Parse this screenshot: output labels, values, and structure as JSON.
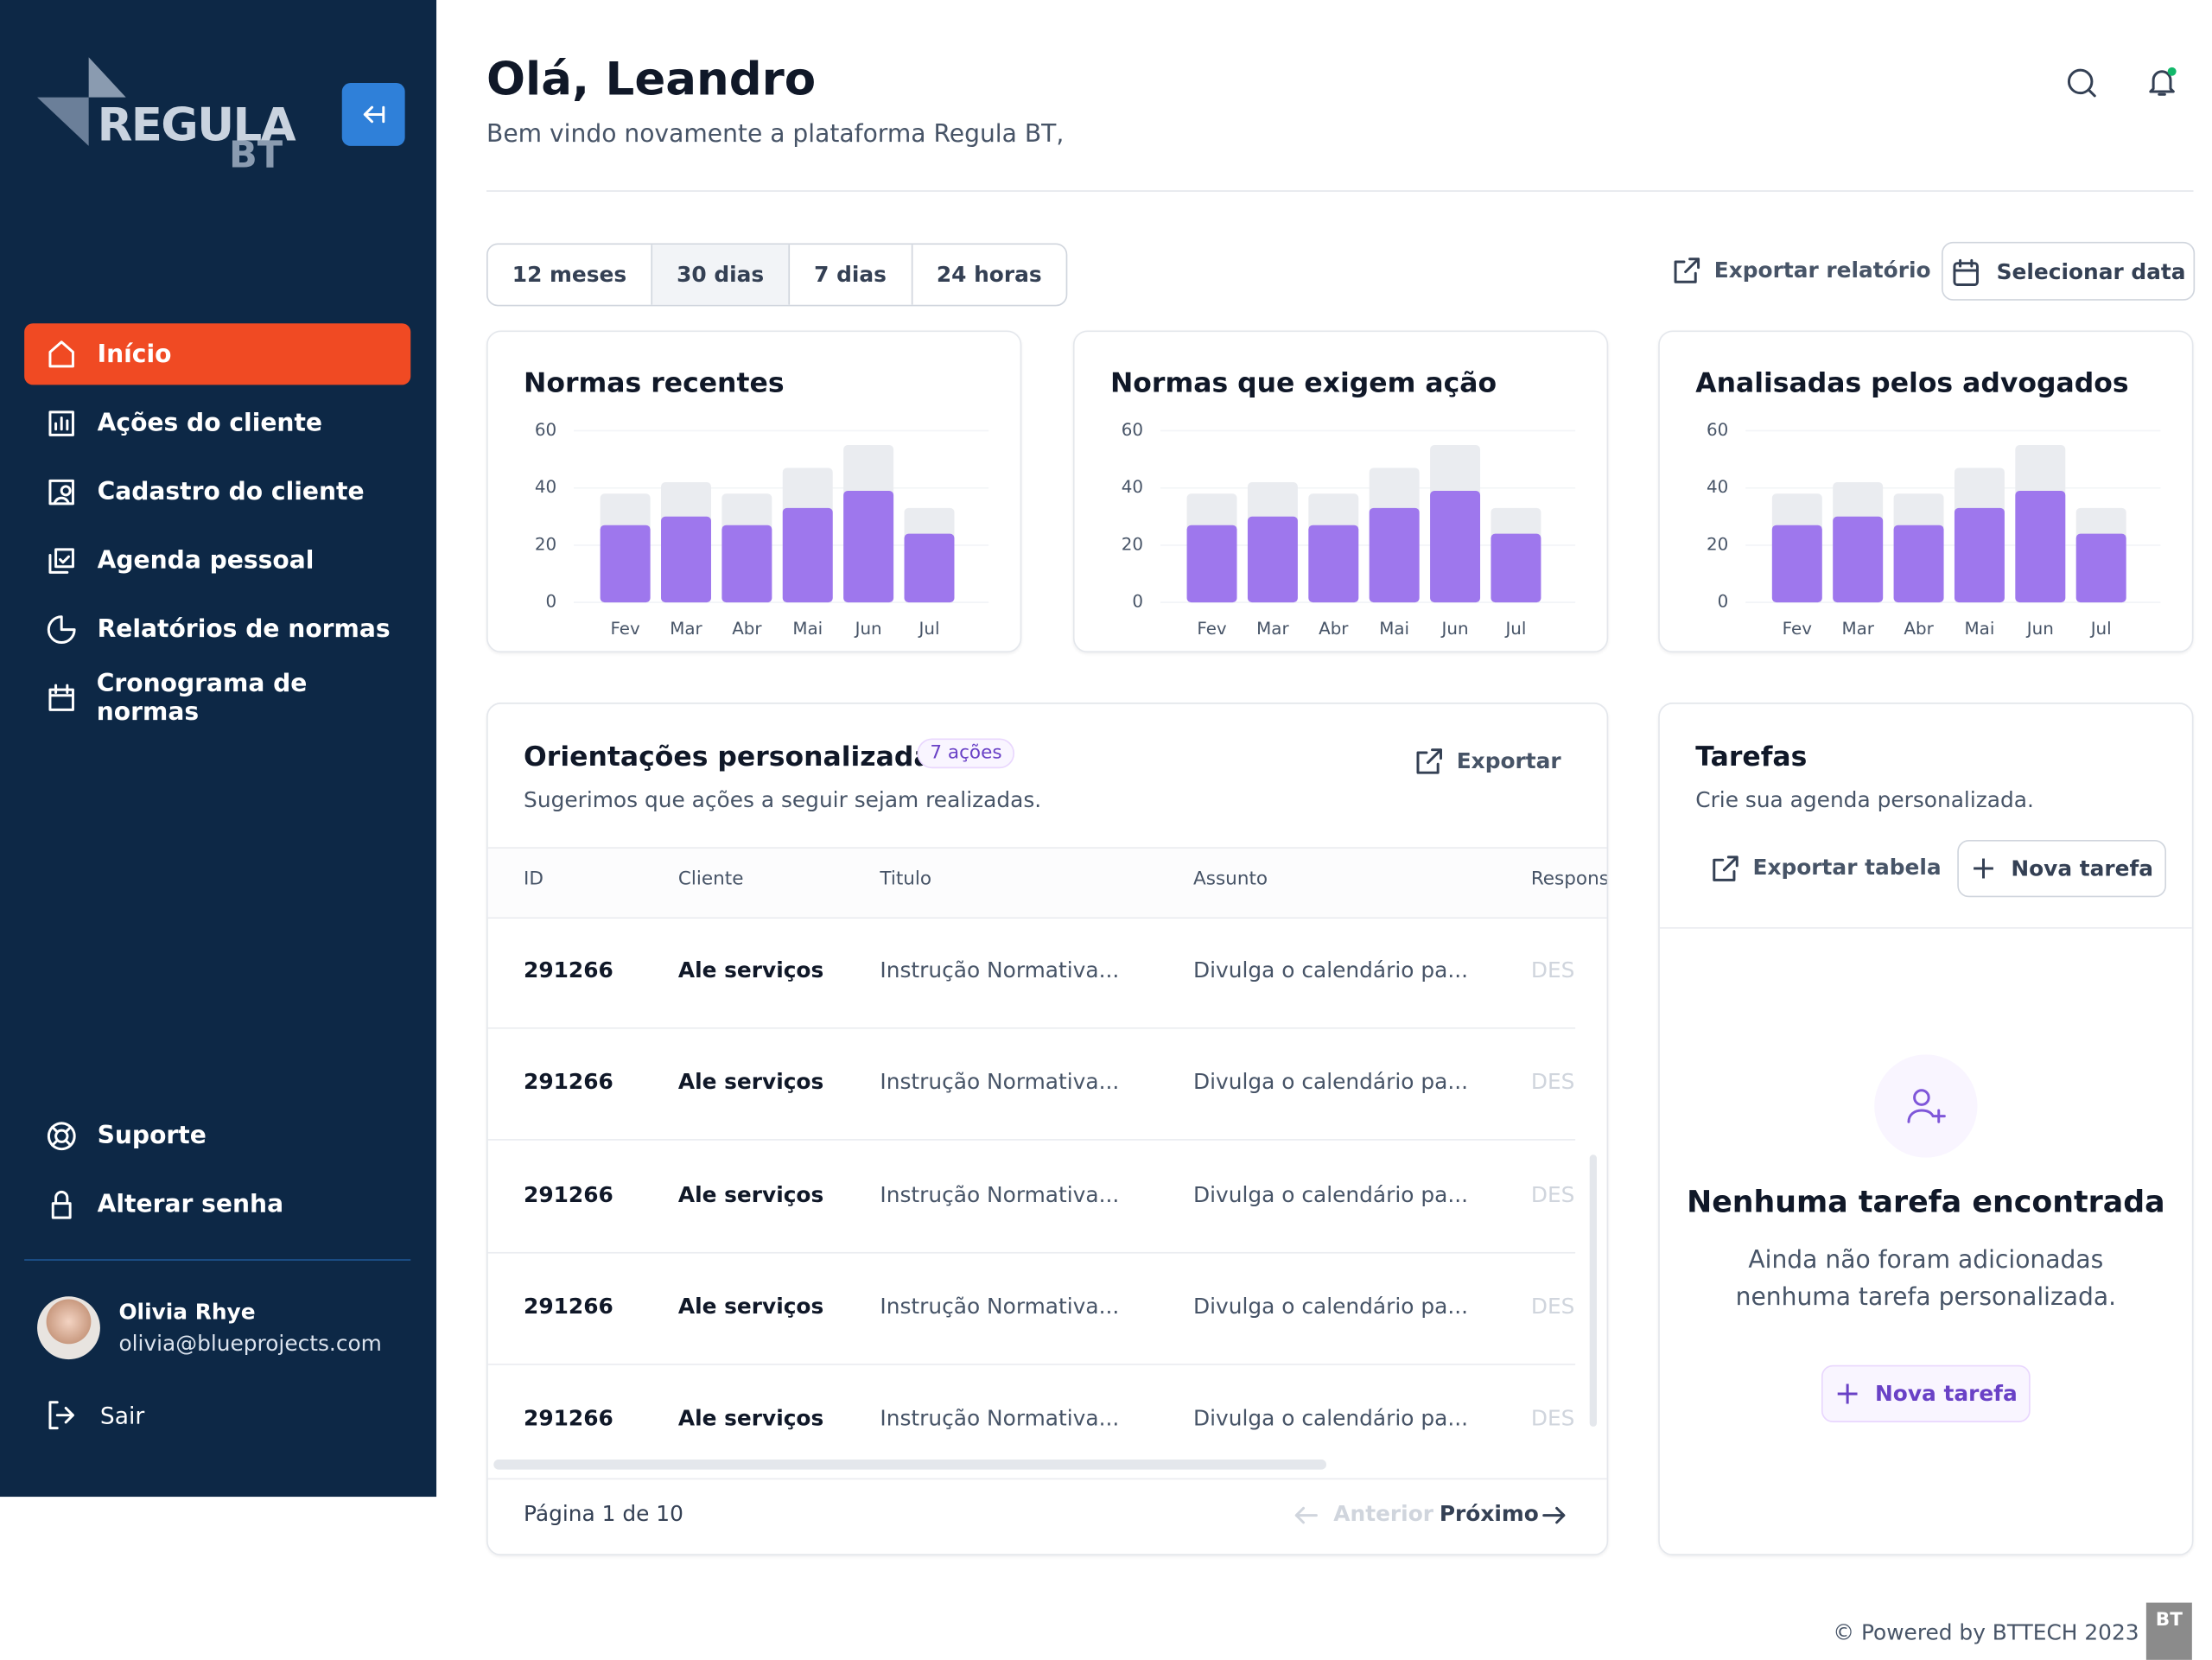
{
  "sidebar": {
    "logo": "REGULA",
    "logo_sub": "BT",
    "nav": [
      "Início",
      "Ações do cliente",
      "Cadastro do cliente",
      "Agenda pessoal",
      "Relatórios de normas",
      "Cronograma de normas"
    ],
    "bottom_nav": [
      "Suporte",
      "Alterar senha"
    ],
    "user": {
      "name": "Olivia Rhye",
      "email": "olivia@blueprojects.com"
    },
    "logout": "Sair"
  },
  "header": {
    "title": "Olá, Leandro",
    "subtitle": "Bem vindo novamente a plataforma Regula BT,"
  },
  "filters": [
    "12 meses",
    "30 dias",
    "7 dias",
    "24 horas"
  ],
  "actions": {
    "export": "Exportar relatório",
    "date": "Selecionar data"
  },
  "charts": [
    {
      "type": "bar",
      "title": "Normas recentes",
      "categories": [
        "Fev",
        "Mar",
        "Abr",
        "Mai",
        "Jun",
        "Jul"
      ],
      "series": [
        {
          "color": "#eaecf0",
          "values": [
            38,
            42,
            38,
            47,
            55,
            33
          ]
        },
        {
          "color": "#9e77ed",
          "values": [
            27,
            30,
            27,
            33,
            39,
            24
          ]
        }
      ],
      "ylim": [
        0,
        60
      ],
      "yticks": [
        0,
        20,
        40,
        60
      ]
    },
    {
      "type": "bar",
      "title": "Normas que exigem ação",
      "categories": [
        "Fev",
        "Mar",
        "Abr",
        "Mai",
        "Jun",
        "Jul"
      ],
      "series": [
        {
          "color": "#eaecf0",
          "values": [
            38,
            42,
            38,
            47,
            55,
            33
          ]
        },
        {
          "color": "#9e77ed",
          "values": [
            27,
            30,
            27,
            33,
            39,
            24
          ]
        }
      ],
      "ylim": [
        0,
        60
      ],
      "yticks": [
        0,
        20,
        40,
        60
      ]
    },
    {
      "type": "bar",
      "title": "Analisadas pelos advogados",
      "categories": [
        "Fev",
        "Mar",
        "Abr",
        "Mai",
        "Jun",
        "Jul"
      ],
      "series": [
        {
          "color": "#eaecf0",
          "values": [
            38,
            42,
            38,
            47,
            55,
            33
          ]
        },
        {
          "color": "#9e77ed",
          "values": [
            27,
            30,
            27,
            33,
            39,
            24
          ]
        }
      ],
      "ylim": [
        0,
        60
      ],
      "yticks": [
        0,
        20,
        40,
        60
      ]
    }
  ],
  "guidance": {
    "title": "Orientações personalizadas",
    "badge": "7 ações",
    "subtitle": "Sugerimos que ações a seguir sejam realizadas.",
    "export": "Exportar",
    "columns": [
      "ID",
      "Cliente",
      "Titulo",
      "Assunto",
      "Respons"
    ],
    "rows": [
      [
        "291266",
        "Ale serviços",
        "Instrução Normativa...",
        "Divulga o calendário pa...",
        "DES"
      ],
      [
        "291266",
        "Ale serviços",
        "Instrução Normativa...",
        "Divulga o calendário pa...",
        "DES"
      ],
      [
        "291266",
        "Ale serviços",
        "Instrução Normativa...",
        "Divulga o calendário pa...",
        "DES"
      ],
      [
        "291266",
        "Ale serviços",
        "Instrução Normativa...",
        "Divulga o calendário pa...",
        "DES"
      ],
      [
        "291266",
        "Ale serviços",
        "Instrução Normativa...",
        "Divulga o calendário pa...",
        "DES"
      ]
    ],
    "pagination": {
      "page": "Página 1 de 10",
      "prev": "Anterior",
      "next": "Próximo"
    }
  },
  "tasks": {
    "title": "Tarefas",
    "subtitle": "Crie sua agenda personalizada.",
    "export": "Exportar tabela",
    "new": "Nova tarefa",
    "empty_title": "Nenhuma tarefa encontrada",
    "empty_text": "Ainda não foram adicionadas nenhuma tarefa personalizada.",
    "empty_button": "Nova tarefa"
  },
  "footer": "© Powered by BTTECH 2023"
}
